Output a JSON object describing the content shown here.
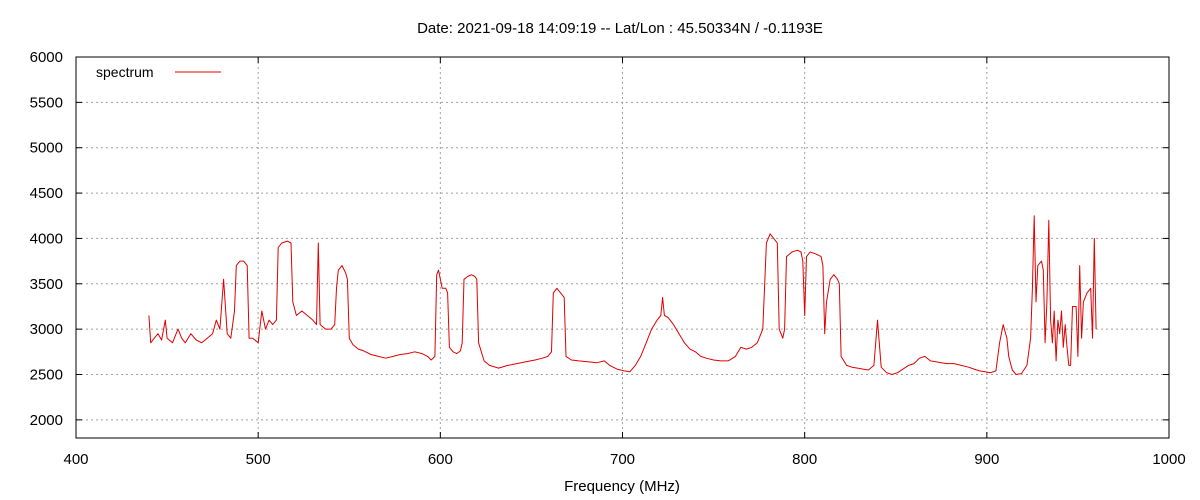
{
  "chart_data": {
    "type": "line",
    "title": "Date: 2021-09-18 14:09:19  --  Lat/Lon : 45.50334N / -0.1193E",
    "xlabel": "Frequency (MHz)",
    "ylabel": "",
    "xlim": [
      400,
      1000
    ],
    "ylim": [
      1800,
      6000
    ],
    "x_ticks": [
      400,
      500,
      600,
      700,
      800,
      900,
      1000
    ],
    "y_ticks": [
      2000,
      2500,
      3000,
      3500,
      4000,
      4500,
      5000,
      5500,
      6000
    ],
    "grid": true,
    "legend_position": "top-left",
    "series": [
      {
        "name": "spectrum",
        "color": "#e00000",
        "points": [
          [
            440,
            3150
          ],
          [
            441,
            2850
          ],
          [
            443,
            2900
          ],
          [
            445,
            2950
          ],
          [
            447,
            2880
          ],
          [
            449,
            3100
          ],
          [
            450,
            2900
          ],
          [
            453,
            2850
          ],
          [
            456,
            3000
          ],
          [
            458,
            2900
          ],
          [
            460,
            2850
          ],
          [
            463,
            2950
          ],
          [
            466,
            2880
          ],
          [
            469,
            2850
          ],
          [
            472,
            2900
          ],
          [
            475,
            2950
          ],
          [
            477,
            3100
          ],
          [
            479,
            3000
          ],
          [
            481,
            3550
          ],
          [
            483,
            2950
          ],
          [
            485,
            2900
          ],
          [
            487,
            3200
          ],
          [
            488,
            3700
          ],
          [
            490,
            3750
          ],
          [
            492,
            3750
          ],
          [
            494,
            3700
          ],
          [
            495,
            2900
          ],
          [
            497,
            2900
          ],
          [
            500,
            2850
          ],
          [
            502,
            3200
          ],
          [
            504,
            3000
          ],
          [
            506,
            3100
          ],
          [
            508,
            3050
          ],
          [
            510,
            3100
          ],
          [
            511,
            3900
          ],
          [
            513,
            3950
          ],
          [
            516,
            3970
          ],
          [
            518,
            3950
          ],
          [
            519,
            3300
          ],
          [
            521,
            3150
          ],
          [
            524,
            3200
          ],
          [
            527,
            3150
          ],
          [
            530,
            3100
          ],
          [
            532,
            3050
          ],
          [
            533,
            3950
          ],
          [
            534,
            3050
          ],
          [
            537,
            3000
          ],
          [
            540,
            3000
          ],
          [
            542,
            3050
          ],
          [
            543,
            3450
          ],
          [
            544,
            3650
          ],
          [
            546,
            3700
          ],
          [
            548,
            3620
          ],
          [
            549,
            3550
          ],
          [
            550,
            2900
          ],
          [
            552,
            2830
          ],
          [
            555,
            2780
          ],
          [
            558,
            2760
          ],
          [
            562,
            2720
          ],
          [
            566,
            2700
          ],
          [
            570,
            2680
          ],
          [
            574,
            2700
          ],
          [
            578,
            2720
          ],
          [
            582,
            2730
          ],
          [
            586,
            2750
          ],
          [
            590,
            2730
          ],
          [
            593,
            2700
          ],
          [
            595,
            2660
          ],
          [
            597,
            2700
          ],
          [
            598,
            3600
          ],
          [
            599,
            3650
          ],
          [
            601,
            3450
          ],
          [
            603,
            3450
          ],
          [
            604,
            3400
          ],
          [
            605,
            2800
          ],
          [
            607,
            2750
          ],
          [
            609,
            2730
          ],
          [
            611,
            2760
          ],
          [
            612,
            2850
          ],
          [
            613,
            3550
          ],
          [
            615,
            3580
          ],
          [
            617,
            3600
          ],
          [
            619,
            3580
          ],
          [
            620,
            3550
          ],
          [
            621,
            2850
          ],
          [
            624,
            2650
          ],
          [
            627,
            2600
          ],
          [
            632,
            2570
          ],
          [
            637,
            2600
          ],
          [
            642,
            2620
          ],
          [
            647,
            2640
          ],
          [
            652,
            2660
          ],
          [
            656,
            2680
          ],
          [
            659,
            2700
          ],
          [
            661,
            2750
          ],
          [
            662,
            3400
          ],
          [
            664,
            3450
          ],
          [
            666,
            3400
          ],
          [
            668,
            3350
          ],
          [
            669,
            2700
          ],
          [
            672,
            2660
          ],
          [
            676,
            2650
          ],
          [
            681,
            2640
          ],
          [
            686,
            2630
          ],
          [
            690,
            2650
          ],
          [
            693,
            2600
          ],
          [
            697,
            2560
          ],
          [
            701,
            2540
          ],
          [
            704,
            2530
          ],
          [
            707,
            2600
          ],
          [
            710,
            2700
          ],
          [
            713,
            2850
          ],
          [
            716,
            3000
          ],
          [
            719,
            3100
          ],
          [
            721,
            3150
          ],
          [
            722,
            3350
          ],
          [
            723,
            3150
          ],
          [
            725,
            3130
          ],
          [
            728,
            3050
          ],
          [
            731,
            2950
          ],
          [
            734,
            2850
          ],
          [
            737,
            2780
          ],
          [
            740,
            2750
          ],
          [
            743,
            2700
          ],
          [
            746,
            2680
          ],
          [
            750,
            2660
          ],
          [
            754,
            2650
          ],
          [
            758,
            2650
          ],
          [
            762,
            2700
          ],
          [
            765,
            2800
          ],
          [
            768,
            2780
          ],
          [
            771,
            2800
          ],
          [
            774,
            2850
          ],
          [
            777,
            3000
          ],
          [
            779,
            3950
          ],
          [
            781,
            4050
          ],
          [
            783,
            4000
          ],
          [
            785,
            3950
          ],
          [
            786,
            3000
          ],
          [
            788,
            2900
          ],
          [
            789,
            3000
          ],
          [
            790,
            3800
          ],
          [
            793,
            3850
          ],
          [
            796,
            3870
          ],
          [
            798,
            3850
          ],
          [
            799,
            3750
          ],
          [
            800,
            3150
          ],
          [
            801,
            3800
          ],
          [
            803,
            3850
          ],
          [
            806,
            3830
          ],
          [
            809,
            3800
          ],
          [
            810,
            3700
          ],
          [
            811,
            2950
          ],
          [
            812,
            3300
          ],
          [
            814,
            3550
          ],
          [
            816,
            3600
          ],
          [
            818,
            3550
          ],
          [
            819,
            3500
          ],
          [
            820,
            2700
          ],
          [
            823,
            2600
          ],
          [
            826,
            2580
          ],
          [
            829,
            2570
          ],
          [
            832,
            2560
          ],
          [
            835,
            2550
          ],
          [
            838,
            2600
          ],
          [
            840,
            3100
          ],
          [
            842,
            2580
          ],
          [
            845,
            2520
          ],
          [
            848,
            2500
          ],
          [
            851,
            2520
          ],
          [
            854,
            2560
          ],
          [
            857,
            2600
          ],
          [
            860,
            2620
          ],
          [
            863,
            2680
          ],
          [
            866,
            2700
          ],
          [
            869,
            2650
          ],
          [
            872,
            2640
          ],
          [
            875,
            2630
          ],
          [
            878,
            2620
          ],
          [
            882,
            2620
          ],
          [
            886,
            2600
          ],
          [
            890,
            2580
          ],
          [
            893,
            2560
          ],
          [
            896,
            2540
          ],
          [
            899,
            2530
          ],
          [
            902,
            2520
          ],
          [
            905,
            2540
          ],
          [
            907,
            2850
          ],
          [
            909,
            3050
          ],
          [
            911,
            2900
          ],
          [
            912,
            2700
          ],
          [
            914,
            2550
          ],
          [
            916,
            2500
          ],
          [
            919,
            2510
          ],
          [
            922,
            2600
          ],
          [
            924,
            2900
          ],
          [
            925,
            3450
          ],
          [
            926,
            4250
          ],
          [
            927,
            3300
          ],
          [
            928,
            3700
          ],
          [
            930,
            3750
          ],
          [
            931,
            3650
          ],
          [
            932,
            2850
          ],
          [
            933,
            3300
          ],
          [
            934,
            4200
          ],
          [
            935,
            3100
          ],
          [
            936,
            2850
          ],
          [
            937,
            3200
          ],
          [
            938,
            2650
          ],
          [
            939,
            3100
          ],
          [
            940,
            2950
          ],
          [
            941,
            3200
          ],
          [
            942,
            2800
          ],
          [
            943,
            3050
          ],
          [
            944,
            2800
          ],
          [
            945,
            2600
          ],
          [
            946,
            2600
          ],
          [
            947,
            3250
          ],
          [
            949,
            3250
          ],
          [
            950,
            2700
          ],
          [
            951,
            3700
          ],
          [
            952,
            2900
          ],
          [
            953,
            3300
          ],
          [
            954,
            3350
          ],
          [
            955,
            3400
          ],
          [
            957,
            3450
          ],
          [
            958,
            2900
          ],
          [
            959,
            4000
          ],
          [
            960,
            3000
          ]
        ]
      }
    ]
  }
}
